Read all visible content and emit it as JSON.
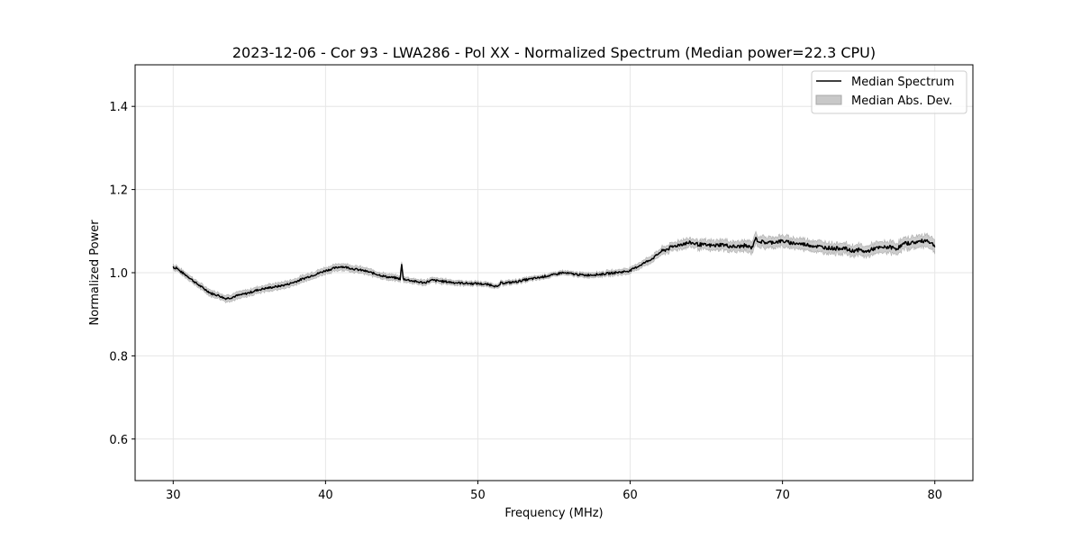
{
  "chart_data": {
    "type": "line",
    "title": "2023-12-06 - Cor 93 - LWA286 - Pol XX - Normalized Spectrum (Median power=22.3 CPU)",
    "xlabel": "Frequency (MHz)",
    "ylabel": "Normalized Power",
    "xlim": [
      27.5,
      82.5
    ],
    "ylim": [
      0.5,
      1.5
    ],
    "xticks": [
      30,
      40,
      50,
      60,
      70,
      80
    ],
    "yticks": [
      0.6,
      0.8,
      1.0,
      1.2,
      1.4
    ],
    "xtick_labels": [
      "30",
      "40",
      "50",
      "60",
      "70",
      "80"
    ],
    "ytick_labels": [
      "0.6",
      "0.8",
      "1.0",
      "1.2",
      "1.4"
    ],
    "grid": true,
    "legend_position": "top-right",
    "legend": [
      {
        "label": "Median Spectrum",
        "kind": "line",
        "color": "#000000"
      },
      {
        "label": "Median Abs. Dev.",
        "kind": "band",
        "color": "#c8c8c8"
      }
    ],
    "series": [
      {
        "name": "Median Spectrum",
        "color": "#000000",
        "x": [
          30.0,
          30.1,
          30.2,
          30.4,
          30.6,
          31.0,
          31.5,
          32.0,
          32.5,
          33.0,
          33.4,
          33.8,
          34.2,
          34.6,
          35.0,
          35.5,
          36.0,
          36.5,
          37.0,
          37.5,
          38.0,
          38.5,
          39.0,
          39.5,
          40.0,
          40.5,
          41.0,
          41.5,
          42.0,
          42.5,
          43.0,
          43.5,
          44.0,
          44.5,
          44.9,
          45.0,
          45.1,
          45.5,
          46.0,
          46.5,
          47.0,
          47.5,
          48.0,
          48.5,
          49.0,
          49.5,
          50.0,
          50.5,
          51.0,
          51.3,
          51.5,
          52.0,
          52.5,
          53.0,
          53.5,
          54.0,
          54.5,
          55.0,
          55.5,
          56.0,
          56.5,
          57.0,
          57.5,
          58.0,
          58.5,
          59.0,
          59.5,
          60.0,
          60.5,
          61.0,
          61.5,
          62.0,
          62.5,
          63.0,
          63.5,
          64.0,
          64.5,
          65.0,
          65.5,
          66.0,
          66.5,
          67.0,
          67.5,
          68.0,
          68.2,
          68.5,
          69.0,
          69.5,
          70.0,
          70.5,
          71.0,
          71.5,
          72.0,
          72.5,
          73.0,
          73.5,
          74.0,
          74.5,
          75.0,
          75.5,
          76.0,
          76.5,
          77.0,
          77.5,
          78.0,
          78.5,
          79.0,
          79.5,
          80.0
        ],
        "y": [
          1.015,
          1.01,
          1.013,
          1.005,
          1.0,
          0.99,
          0.975,
          0.962,
          0.95,
          0.945,
          0.938,
          0.94,
          0.945,
          0.948,
          0.952,
          0.958,
          0.962,
          0.965,
          0.968,
          0.972,
          0.978,
          0.985,
          0.992,
          0.998,
          1.005,
          1.01,
          1.015,
          1.012,
          1.008,
          1.005,
          1.0,
          0.995,
          0.99,
          0.988,
          0.985,
          1.02,
          0.985,
          0.982,
          0.978,
          0.976,
          0.982,
          0.98,
          0.978,
          0.976,
          0.975,
          0.974,
          0.974,
          0.972,
          0.97,
          0.965,
          0.975,
          0.976,
          0.978,
          0.982,
          0.985,
          0.988,
          0.992,
          0.995,
          1.0,
          0.998,
          0.996,
          0.994,
          0.995,
          0.996,
          0.998,
          1.0,
          1.002,
          1.005,
          1.015,
          1.025,
          1.035,
          1.05,
          1.058,
          1.065,
          1.07,
          1.072,
          1.068,
          1.066,
          1.065,
          1.068,
          1.064,
          1.062,
          1.065,
          1.06,
          1.082,
          1.075,
          1.072,
          1.074,
          1.076,
          1.072,
          1.07,
          1.068,
          1.065,
          1.062,
          1.06,
          1.058,
          1.06,
          1.052,
          1.055,
          1.05,
          1.058,
          1.06,
          1.062,
          1.058,
          1.07,
          1.072,
          1.075,
          1.078,
          1.065
        ]
      },
      {
        "name": "Median Abs. Dev.",
        "color": "#c8c8c8",
        "x": [
          30.0,
          32.0,
          34.0,
          36.0,
          38.0,
          40.0,
          42.0,
          44.0,
          46.0,
          48.0,
          50.0,
          52.0,
          54.0,
          56.0,
          58.0,
          60.0,
          62.0,
          64.0,
          66.0,
          68.0,
          70.0,
          72.0,
          74.0,
          76.0,
          78.0,
          80.0
        ],
        "dev": [
          0.006,
          0.007,
          0.008,
          0.008,
          0.008,
          0.008,
          0.008,
          0.007,
          0.006,
          0.006,
          0.005,
          0.005,
          0.005,
          0.005,
          0.006,
          0.007,
          0.009,
          0.011,
          0.012,
          0.013,
          0.013,
          0.013,
          0.013,
          0.013,
          0.014,
          0.014
        ]
      }
    ]
  }
}
